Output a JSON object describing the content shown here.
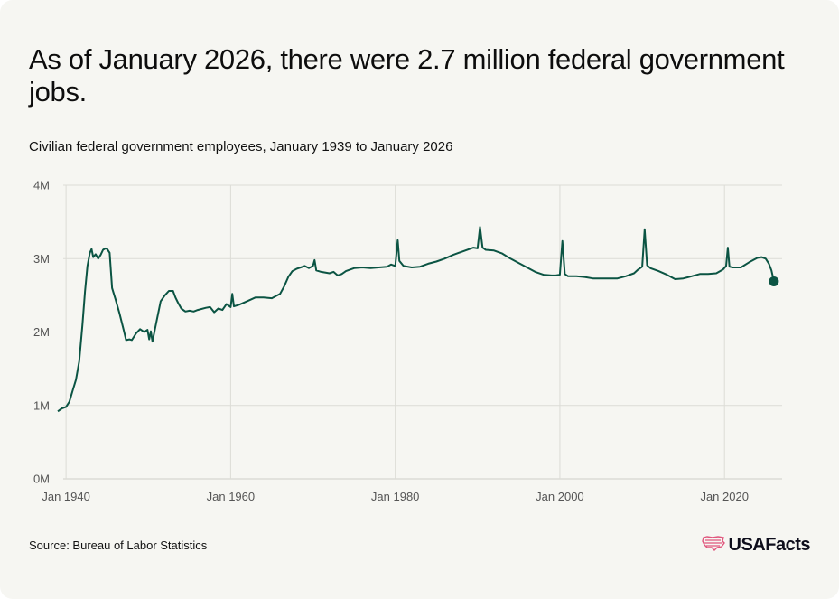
{
  "title": "As of January 2026, there were 2.7 million federal government jobs.",
  "subtitle": "Civilian federal government employees, January 1939 to January 2026",
  "source": "Source: Bureau of Labor Statistics",
  "brand": {
    "name": "USAFacts",
    "logo_icon": "usa-map-flag-icon"
  },
  "colors": {
    "line": "#0b5443",
    "grid": "#dcdcd6",
    "background": "#f6f6f2",
    "brand_icon": "#e0567d"
  },
  "chart_data": {
    "type": "line",
    "title": "",
    "xlabel": "",
    "ylabel": "",
    "xlim": [
      1939,
      2027
    ],
    "ylim": [
      0,
      4000000
    ],
    "grid": true,
    "y_ticks": [
      {
        "value": 0,
        "label": "0M"
      },
      {
        "value": 1000000,
        "label": "1M"
      },
      {
        "value": 2000000,
        "label": "2M"
      },
      {
        "value": 3000000,
        "label": "3M"
      },
      {
        "value": 4000000,
        "label": "4M"
      }
    ],
    "x_ticks": [
      {
        "value": 1940,
        "label": "Jan 1940"
      },
      {
        "value": 1960,
        "label": "Jan 1960"
      },
      {
        "value": 1980,
        "label": "Jan 1980"
      },
      {
        "value": 2000,
        "label": "Jan 2000"
      },
      {
        "value": 2020,
        "label": "Jan 2020"
      }
    ],
    "series": [
      {
        "points": [
          [
            1939.0,
            920000
          ],
          [
            1939.5,
            960000
          ],
          [
            1940.0,
            980000
          ],
          [
            1940.4,
            1050000
          ],
          [
            1940.8,
            1200000
          ],
          [
            1941.2,
            1350000
          ],
          [
            1941.6,
            1600000
          ],
          [
            1942.0,
            2100000
          ],
          [
            1942.3,
            2550000
          ],
          [
            1942.6,
            2900000
          ],
          [
            1942.9,
            3080000
          ],
          [
            1943.1,
            3130000
          ],
          [
            1943.3,
            3020000
          ],
          [
            1943.6,
            3060000
          ],
          [
            1943.9,
            3000000
          ],
          [
            1944.2,
            3050000
          ],
          [
            1944.5,
            3120000
          ],
          [
            1944.8,
            3140000
          ],
          [
            1945.0,
            3130000
          ],
          [
            1945.3,
            3080000
          ],
          [
            1945.6,
            2600000
          ],
          [
            1946.0,
            2450000
          ],
          [
            1946.5,
            2250000
          ],
          [
            1947.0,
            2030000
          ],
          [
            1947.3,
            1890000
          ],
          [
            1947.7,
            1900000
          ],
          [
            1948.0,
            1890000
          ],
          [
            1948.5,
            1980000
          ],
          [
            1949.0,
            2040000
          ],
          [
            1949.5,
            2000000
          ],
          [
            1949.9,
            2030000
          ],
          [
            1950.1,
            1900000
          ],
          [
            1950.3,
            2010000
          ],
          [
            1950.5,
            1870000
          ],
          [
            1951.0,
            2150000
          ],
          [
            1951.5,
            2420000
          ],
          [
            1952.0,
            2500000
          ],
          [
            1952.5,
            2560000
          ],
          [
            1953.0,
            2560000
          ],
          [
            1953.3,
            2470000
          ],
          [
            1953.6,
            2400000
          ],
          [
            1954.0,
            2320000
          ],
          [
            1954.5,
            2280000
          ],
          [
            1955.0,
            2290000
          ],
          [
            1955.5,
            2280000
          ],
          [
            1956.0,
            2300000
          ],
          [
            1957.0,
            2330000
          ],
          [
            1957.5,
            2340000
          ],
          [
            1958.0,
            2270000
          ],
          [
            1958.5,
            2320000
          ],
          [
            1959.0,
            2300000
          ],
          [
            1959.5,
            2380000
          ],
          [
            1960.0,
            2340000
          ],
          [
            1960.2,
            2520000
          ],
          [
            1960.4,
            2350000
          ],
          [
            1961.0,
            2370000
          ],
          [
            1962.0,
            2420000
          ],
          [
            1963.0,
            2470000
          ],
          [
            1964.0,
            2470000
          ],
          [
            1965.0,
            2460000
          ],
          [
            1966.0,
            2520000
          ],
          [
            1966.5,
            2620000
          ],
          [
            1967.0,
            2750000
          ],
          [
            1967.5,
            2830000
          ],
          [
            1968.0,
            2860000
          ],
          [
            1968.5,
            2880000
          ],
          [
            1969.0,
            2900000
          ],
          [
            1969.5,
            2870000
          ],
          [
            1970.0,
            2900000
          ],
          [
            1970.2,
            2980000
          ],
          [
            1970.4,
            2840000
          ],
          [
            1971.0,
            2820000
          ],
          [
            1972.0,
            2800000
          ],
          [
            1972.5,
            2820000
          ],
          [
            1973.0,
            2770000
          ],
          [
            1973.5,
            2790000
          ],
          [
            1974.0,
            2830000
          ],
          [
            1975.0,
            2870000
          ],
          [
            1976.0,
            2880000
          ],
          [
            1977.0,
            2870000
          ],
          [
            1978.0,
            2880000
          ],
          [
            1979.0,
            2890000
          ],
          [
            1979.5,
            2920000
          ],
          [
            1980.0,
            2900000
          ],
          [
            1980.3,
            3250000
          ],
          [
            1980.5,
            2970000
          ],
          [
            1981.0,
            2900000
          ],
          [
            1982.0,
            2880000
          ],
          [
            1983.0,
            2890000
          ],
          [
            1984.0,
            2930000
          ],
          [
            1985.0,
            2960000
          ],
          [
            1986.0,
            3000000
          ],
          [
            1987.0,
            3050000
          ],
          [
            1988.0,
            3090000
          ],
          [
            1989.0,
            3130000
          ],
          [
            1989.5,
            3150000
          ],
          [
            1990.0,
            3140000
          ],
          [
            1990.3,
            3430000
          ],
          [
            1990.6,
            3150000
          ],
          [
            1991.0,
            3120000
          ],
          [
            1992.0,
            3110000
          ],
          [
            1993.0,
            3070000
          ],
          [
            1994.0,
            3000000
          ],
          [
            1995.0,
            2940000
          ],
          [
            1996.0,
            2880000
          ],
          [
            1997.0,
            2820000
          ],
          [
            1998.0,
            2780000
          ],
          [
            1999.0,
            2770000
          ],
          [
            1999.5,
            2770000
          ],
          [
            2000.0,
            2780000
          ],
          [
            2000.3,
            3240000
          ],
          [
            2000.6,
            2790000
          ],
          [
            2001.0,
            2760000
          ],
          [
            2002.0,
            2760000
          ],
          [
            2003.0,
            2750000
          ],
          [
            2004.0,
            2730000
          ],
          [
            2005.0,
            2730000
          ],
          [
            2006.0,
            2730000
          ],
          [
            2007.0,
            2730000
          ],
          [
            2008.0,
            2760000
          ],
          [
            2009.0,
            2800000
          ],
          [
            2009.5,
            2850000
          ],
          [
            2010.0,
            2890000
          ],
          [
            2010.3,
            3400000
          ],
          [
            2010.6,
            2910000
          ],
          [
            2011.0,
            2870000
          ],
          [
            2012.0,
            2830000
          ],
          [
            2013.0,
            2780000
          ],
          [
            2014.0,
            2720000
          ],
          [
            2015.0,
            2730000
          ],
          [
            2016.0,
            2760000
          ],
          [
            2017.0,
            2790000
          ],
          [
            2018.0,
            2790000
          ],
          [
            2019.0,
            2800000
          ],
          [
            2019.8,
            2850000
          ],
          [
            2020.2,
            2900000
          ],
          [
            2020.4,
            3150000
          ],
          [
            2020.6,
            2890000
          ],
          [
            2021.0,
            2880000
          ],
          [
            2022.0,
            2880000
          ],
          [
            2023.0,
            2950000
          ],
          [
            2024.0,
            3010000
          ],
          [
            2024.5,
            3020000
          ],
          [
            2025.0,
            3000000
          ],
          [
            2025.4,
            2930000
          ],
          [
            2025.7,
            2840000
          ],
          [
            2026.0,
            2690000
          ]
        ],
        "marker_last": true
      }
    ]
  }
}
